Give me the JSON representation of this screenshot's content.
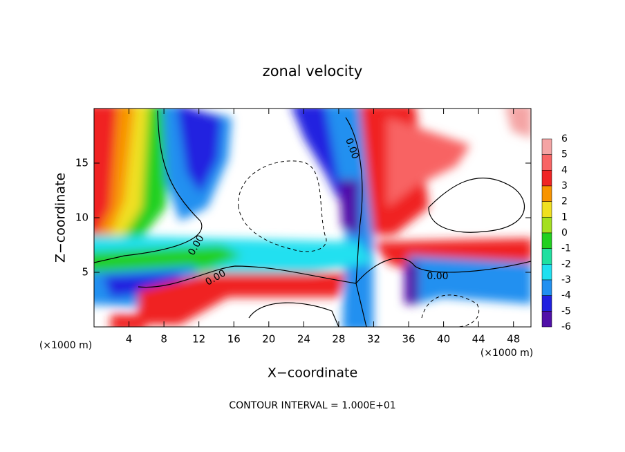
{
  "chart_data": {
    "type": "contour",
    "title": "zonal velocity",
    "x_label": "X−coordinate",
    "y_label": "Z−coordinate",
    "x_unit_label": "(×1000 m)",
    "footnote": "CONTOUR INTERVAL = 1.000E+01",
    "xlim": [
      0,
      50
    ],
    "ylim": [
      0,
      20
    ],
    "xticks": [
      4,
      8,
      12,
      16,
      20,
      24,
      28,
      32,
      36,
      40,
      44,
      48
    ],
    "yticks": [
      5,
      10,
      15
    ],
    "contour_labels": [
      "0.00",
      "0.00",
      "0.00",
      "0.00"
    ],
    "colorbar": {
      "levels": [
        6,
        5,
        4,
        3,
        2,
        1,
        0,
        -1,
        -2,
        -3,
        -4,
        -5,
        -6
      ],
      "colors": [
        "#f4a4a4",
        "#f86464",
        "#f02424",
        "#f89400",
        "#f0e020",
        "#a4e020",
        "#20d020",
        "#20e0a0",
        "#20e0f0",
        "#2090f0",
        "#2020e0",
        "#5010a8"
      ]
    }
  }
}
